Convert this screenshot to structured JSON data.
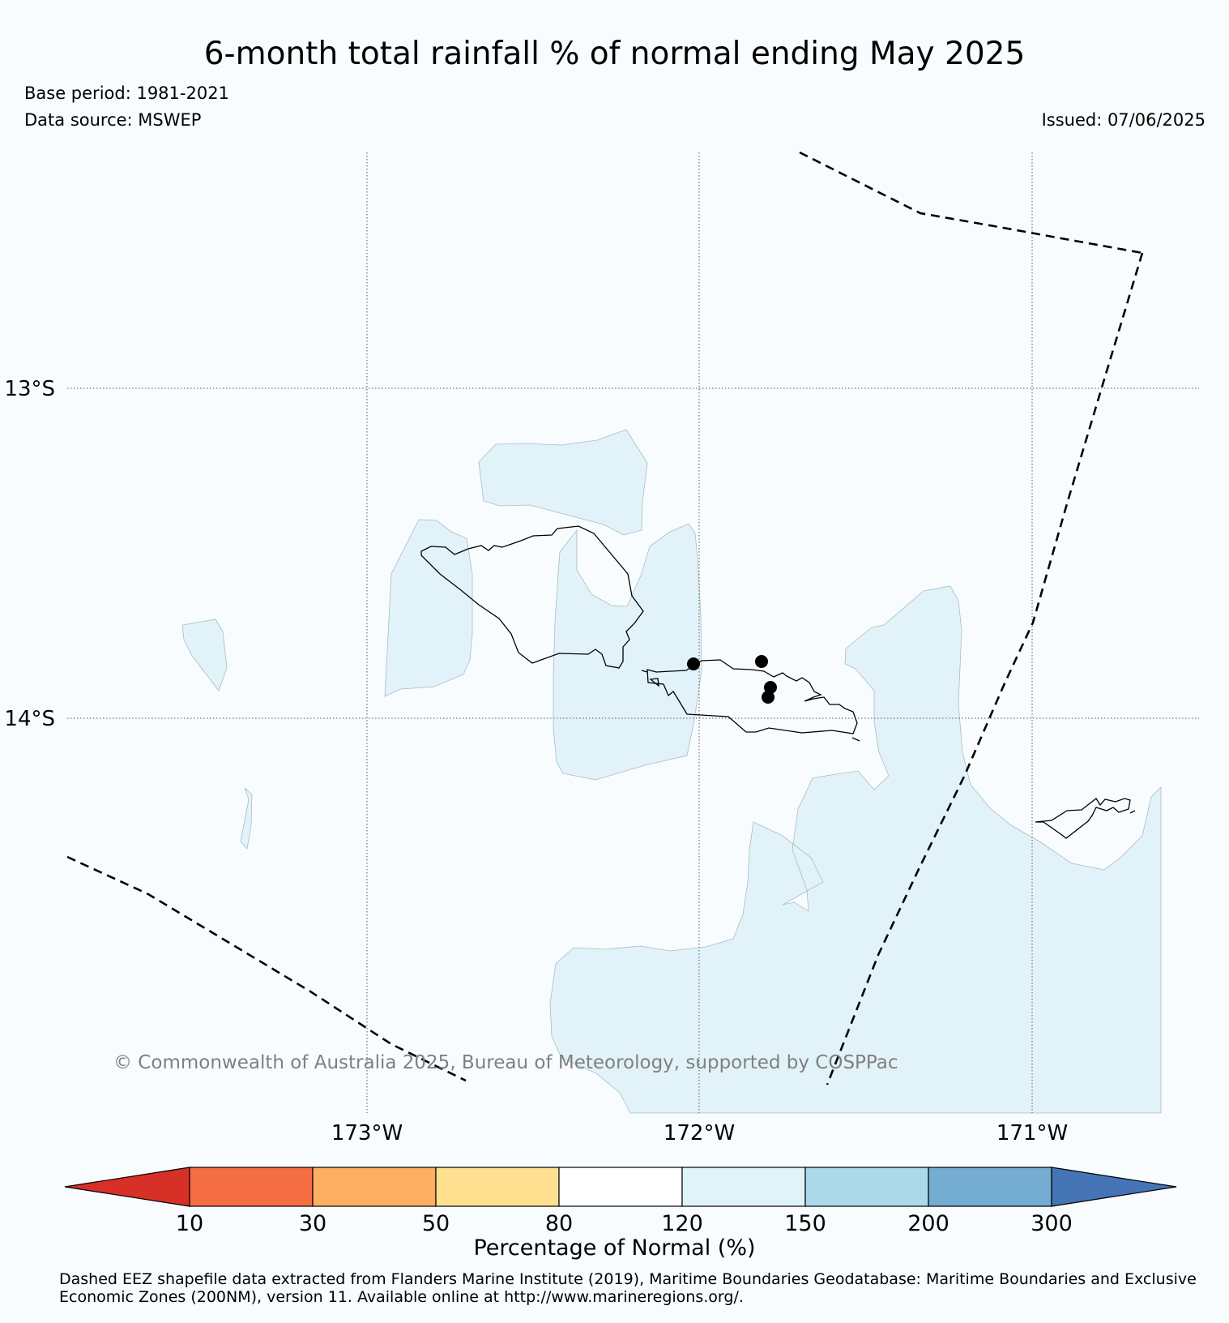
{
  "header": {
    "title": "6-month total rainfall % of normal ending May 2025",
    "base_period": "Base period: 1981-2021",
    "data_source": "Data source: MSWEP",
    "issued": "Issued: 07/06/2025"
  },
  "map": {
    "region": "Samoa",
    "lat_labels": [
      "13°S",
      "14°S"
    ],
    "lon_labels": [
      "173°W",
      "172°W",
      "171°W"
    ],
    "copyright": "© Commonwealth of Australia 2025, Bureau of Meteorology, supported by COSPPac",
    "fill_category": "120-150",
    "fill_color": "#e1f3f9",
    "eez_line_style": "dashed",
    "station_count": 4
  },
  "colorbar": {
    "ticks": [
      "10",
      "30",
      "50",
      "80",
      "120",
      "150",
      "200",
      "300"
    ],
    "colors": [
      "#d73027",
      "#f46d43",
      "#fdae61",
      "#fee090",
      "#ffffff",
      "#e0f3f8",
      "#abd9e9",
      "#74add1",
      "#4575b4"
    ],
    "label": "Percentage of Normal (%)"
  },
  "footnote": "Dashed EEZ shapefile data extracted from Flanders Marine Institute (2019), Maritime Boundaries Geodatabase: Maritime Boundaries and Exclusive Economic Zones (200NM), version 11. Available online at http://www.marineregions.org/."
}
